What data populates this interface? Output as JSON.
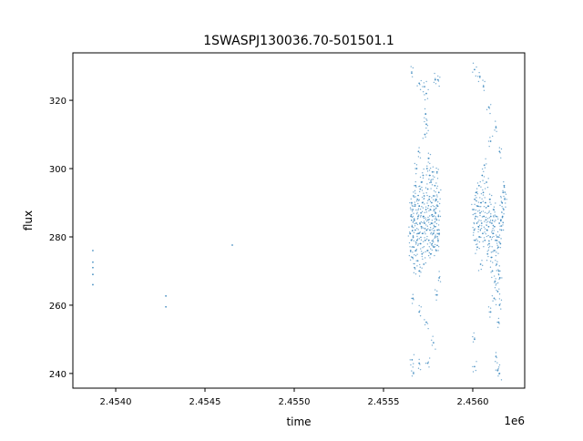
{
  "chart_data": {
    "type": "scatter",
    "title": "1SWASPJ130036.70-501501.1",
    "xlabel": "time",
    "ylabel": "flux",
    "x_offset_label": "1e6",
    "xlim": [
      2453760,
      2456291
    ],
    "ylim": [
      235.7,
      333.9
    ],
    "xticks": [
      2454000,
      2454500,
      2455000,
      2455500,
      2456000
    ],
    "xtick_labels": [
      "2.4540",
      "2.4545",
      "2.4550",
      "2.4555",
      "2.4560"
    ],
    "yticks": [
      240,
      260,
      280,
      300,
      320
    ],
    "ytick_labels": [
      "240",
      "260",
      "280",
      "300",
      "320"
    ],
    "grid": false,
    "color": "#1f77b4",
    "points": [
      [
        2453872,
        276
      ],
      [
        2453872,
        272.6
      ],
      [
        2453872,
        271
      ],
      [
        2453872,
        269
      ],
      [
        2453872,
        266
      ],
      [
        2454281,
        262.7
      ],
      [
        2454281,
        259.5
      ],
      [
        2454653,
        277.6
      ],
      [
        2455650,
        281
      ],
      [
        2455652,
        276
      ],
      [
        2455654,
        286
      ],
      [
        2455656,
        279
      ],
      [
        2455658,
        290
      ],
      [
        2455660,
        283
      ],
      [
        2455662,
        274
      ],
      [
        2455664,
        288
      ],
      [
        2455666,
        280
      ],
      [
        2455668,
        292
      ],
      [
        2455670,
        277
      ],
      [
        2455672,
        285
      ],
      [
        2455674,
        271
      ],
      [
        2455676,
        289
      ],
      [
        2455678,
        282
      ],
      [
        2455680,
        295
      ],
      [
        2455682,
        276
      ],
      [
        2455684,
        284
      ],
      [
        2455686,
        300
      ],
      [
        2455688,
        279
      ],
      [
        2455690,
        291
      ],
      [
        2455692,
        273
      ],
      [
        2455694,
        286
      ],
      [
        2455696,
        305
      ],
      [
        2455698,
        281
      ],
      [
        2455700,
        289
      ],
      [
        2455702,
        270
      ],
      [
        2455704,
        284
      ],
      [
        2455706,
        294
      ],
      [
        2455708,
        278
      ],
      [
        2455710,
        287
      ],
      [
        2455712,
        283
      ],
      [
        2455714,
        296
      ],
      [
        2455716,
        275
      ],
      [
        2455718,
        290
      ],
      [
        2455720,
        281
      ],
      [
        2455722,
        298
      ],
      [
        2455724,
        286
      ],
      [
        2455726,
        272
      ],
      [
        2455728,
        292
      ],
      [
        2455730,
        284
      ],
      [
        2455732,
        310
      ],
      [
        2455734,
        279
      ],
      [
        2455736,
        316
      ],
      [
        2455738,
        288
      ],
      [
        2455740,
        322
      ],
      [
        2455742,
        282
      ],
      [
        2455744,
        300
      ],
      [
        2455746,
        276
      ],
      [
        2455748,
        294
      ],
      [
        2455750,
        285
      ],
      [
        2455752,
        303
      ],
      [
        2455754,
        279
      ],
      [
        2455756,
        291
      ],
      [
        2455758,
        298
      ],
      [
        2455760,
        282
      ],
      [
        2455762,
        288
      ],
      [
        2455764,
        275
      ],
      [
        2455766,
        296
      ],
      [
        2455768,
        284
      ],
      [
        2455770,
        290
      ],
      [
        2455772,
        278
      ],
      [
        2455774,
        299
      ],
      [
        2455776,
        286
      ],
      [
        2455778,
        281
      ],
      [
        2455780,
        292
      ],
      [
        2455782,
        277
      ],
      [
        2455784,
        288
      ],
      [
        2455786,
        283
      ],
      [
        2455788,
        295
      ],
      [
        2455790,
        280
      ],
      [
        2455792,
        287
      ],
      [
        2455794,
        291
      ],
      [
        2455796,
        276
      ],
      [
        2455798,
        285
      ],
      [
        2455800,
        299
      ],
      [
        2455802,
        282
      ],
      [
        2455804,
        289
      ],
      [
        2455806,
        279
      ],
      [
        2455808,
        286
      ],
      [
        2455810,
        293
      ],
      [
        2455812,
        281
      ],
      [
        2455658,
        328
      ],
      [
        2455700,
        325
      ],
      [
        2455730,
        324
      ],
      [
        2455790,
        326
      ],
      [
        2455805,
        326
      ],
      [
        2455660,
        244
      ],
      [
        2455668,
        240
      ],
      [
        2455700,
        243
      ],
      [
        2455748,
        243
      ],
      [
        2455780,
        249
      ],
      [
        2455665,
        262
      ],
      [
        2455700,
        258
      ],
      [
        2455740,
        255
      ],
      [
        2455800,
        263
      ],
      [
        2455812,
        268
      ],
      [
        2455740,
        313
      ],
      [
        2456005,
        288
      ],
      [
        2456008,
        282
      ],
      [
        2456011,
        291
      ],
      [
        2456014,
        279
      ],
      [
        2456017,
        286
      ],
      [
        2456020,
        293
      ],
      [
        2456023,
        284
      ],
      [
        2456026,
        277
      ],
      [
        2456029,
        289
      ],
      [
        2456032,
        283
      ],
      [
        2456035,
        295
      ],
      [
        2456038,
        280
      ],
      [
        2456041,
        287
      ],
      [
        2456044,
        272
      ],
      [
        2456047,
        290
      ],
      [
        2456050,
        284
      ],
      [
        2456053,
        298
      ],
      [
        2456056,
        281
      ],
      [
        2456059,
        293
      ],
      [
        2456062,
        286
      ],
      [
        2456065,
        301
      ],
      [
        2456068,
        279
      ],
      [
        2456071,
        290
      ],
      [
        2456074,
        285
      ],
      [
        2456077,
        296
      ],
      [
        2456080,
        282
      ],
      [
        2456083,
        275
      ],
      [
        2456086,
        289
      ],
      [
        2456089,
        283
      ],
      [
        2456092,
        278
      ],
      [
        2456095,
        291
      ],
      [
        2456098,
        280
      ],
      [
        2456101,
        286
      ],
      [
        2456104,
        274
      ],
      [
        2456107,
        284
      ],
      [
        2456110,
        270
      ],
      [
        2456113,
        281
      ],
      [
        2456116,
        288
      ],
      [
        2456119,
        276
      ],
      [
        2456122,
        283
      ],
      [
        2456125,
        267
      ],
      [
        2456128,
        279
      ],
      [
        2456131,
        286
      ],
      [
        2456134,
        272
      ],
      [
        2456137,
        280
      ],
      [
        2456140,
        264
      ],
      [
        2456143,
        277
      ],
      [
        2456146,
        270
      ],
      [
        2456149,
        284
      ],
      [
        2456152,
        268
      ],
      [
        2456155,
        278
      ],
      [
        2456158,
        285
      ],
      [
        2456161,
        282
      ],
      [
        2456164,
        290
      ],
      [
        2456167,
        286
      ],
      [
        2456170,
        293
      ],
      [
        2456173,
        288
      ],
      [
        2456176,
        295
      ],
      [
        2456179,
        291
      ],
      [
        2456010,
        329
      ],
      [
        2456040,
        327
      ],
      [
        2456060,
        324
      ],
      [
        2456090,
        318
      ],
      [
        2456100,
        308
      ],
      [
        2456130,
        312
      ],
      [
        2456150,
        305
      ],
      [
        2456010,
        242
      ],
      [
        2456010,
        250
      ],
      [
        2456130,
        245
      ],
      [
        2456140,
        241
      ],
      [
        2456150,
        240
      ],
      [
        2456145,
        255
      ],
      [
        2456150,
        260
      ],
      [
        2456120,
        262
      ],
      [
        2456100,
        258
      ]
    ]
  }
}
